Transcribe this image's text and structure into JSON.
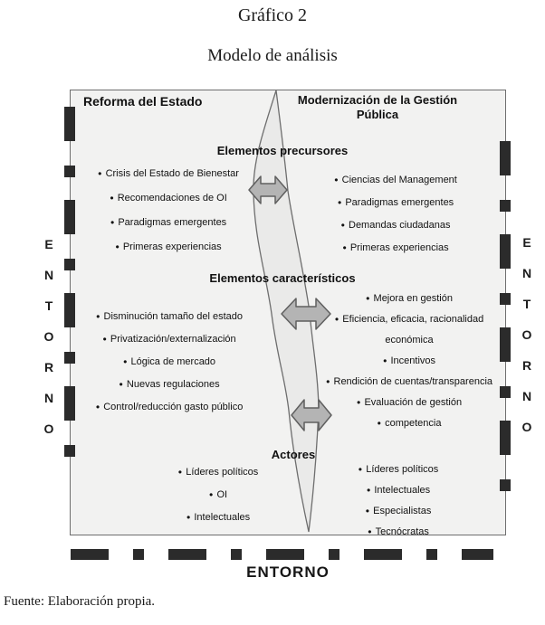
{
  "page": {
    "title": "Gráfico 2",
    "subtitle": "Modelo de análisis",
    "source": "Fuente: Elaboración propia.",
    "bottom_label": "ENTORNO",
    "side_label": "ENTORNO"
  },
  "diagram": {
    "left_header": "Reforma del Estado",
    "right_header": "Modernización de la Gestión Pública",
    "sections": {
      "precursores": {
        "heading": "Elementos precursores",
        "left": [
          "Crisis del Estado de Bienestar",
          "Recomendaciones de OI",
          "Paradigmas emergentes",
          "Primeras experiencias"
        ],
        "right": [
          "Ciencias del Management",
          "Paradigmas emergentes",
          "Demandas ciudadanas",
          "Primeras experiencias"
        ]
      },
      "caracteristicos": {
        "heading": "Elementos característicos",
        "left": [
          "Disminución tamaño del estado",
          "Privatización/externalización",
          "Lógica de mercado",
          "Nuevas regulaciones",
          "Control/reducción gasto público"
        ],
        "right": [
          "Mejora en gestión",
          "Eficiencia, eficacia, racionalidad económica",
          "Incentivos",
          "Rendición de cuentas/transparencia",
          "Evaluación de gestión",
          "competencia"
        ]
      },
      "actores": {
        "heading": "Actores",
        "left": [
          "Líderes políticos",
          "OI",
          "Intelectuales"
        ],
        "right": [
          "Líderes políticos",
          "Intelectuales",
          "Especialistas",
          "Tecnócratas"
        ]
      }
    },
    "colors": {
      "box_bg": "#f2f2f1",
      "box_border": "#6e6e6e",
      "dash": "#2b2b2b",
      "arrow_fill": "#b4b4b4",
      "arrow_stroke": "#5f5f5f",
      "spindle_fill": "#eaeae9",
      "spindle_stroke": "#6e6e6e"
    }
  }
}
